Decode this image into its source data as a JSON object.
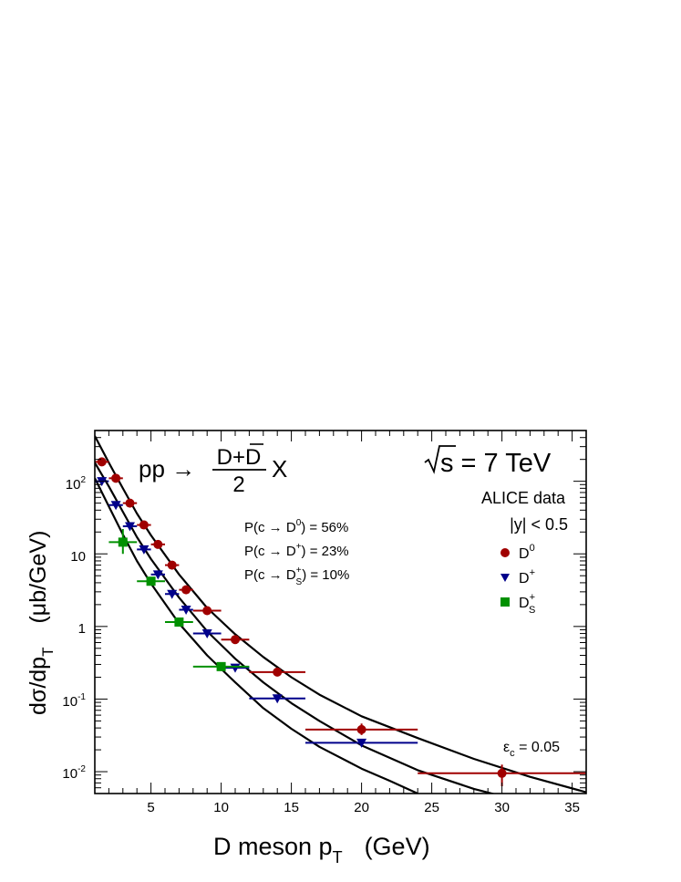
{
  "chart_data": {
    "type": "scatter",
    "y_scale": "log",
    "xlim": [
      1,
      36
    ],
    "ylim": [
      0.005,
      500
    ],
    "grid": false,
    "legend_placement": "top-right",
    "process": {
      "prefix": "pp →",
      "numerator": "D+D",
      "denominator": "2",
      "suffix": "X"
    },
    "energy_label": "s = 7 TeV",
    "legend_header": [
      "ALICE data",
      "|y| < 0.5"
    ],
    "fractions": [
      {
        "text": "P(c → D) = 56%",
        "particle": "D",
        "sup": "0",
        "sub": "",
        "value": "56%"
      },
      {
        "text": "P(c → D) = 23%",
        "particle": "D",
        "sup": "+",
        "sub": "",
        "value": "23%"
      },
      {
        "text": "P(c → D) = 10%",
        "particle": "D",
        "sup": "+",
        "sub": "S",
        "value": "10%"
      }
    ],
    "epsilon_label": {
      "base": "ε",
      "sub": "c",
      "rest": " = 0.05"
    },
    "xlabel": {
      "main": "D meson  p",
      "sub": "T",
      "unit": "(GeV)"
    },
    "ylabel": {
      "main": "dσ/dp",
      "sub": "T",
      "unit": "(μb/GeV)"
    },
    "x_ticks": [
      "5",
      "10",
      "15",
      "20",
      "25",
      "30",
      "35"
    ],
    "y_ticks": [
      {
        "base": "10",
        "exp": "-2"
      },
      {
        "base": "10",
        "exp": "-1"
      },
      {
        "base": "1",
        "exp": ""
      },
      {
        "base": "10",
        "exp": ""
      },
      {
        "base": "10",
        "exp": "2"
      }
    ],
    "series": [
      {
        "name": "D",
        "sup": "0",
        "sub": "",
        "marker": "circle",
        "color": "#a00000",
        "points": [
          {
            "x": 1.5,
            "y": 185,
            "xlo": 1,
            "xhi": 2
          },
          {
            "x": 2.5,
            "y": 110,
            "xlo": 2,
            "xhi": 3
          },
          {
            "x": 3.5,
            "y": 50,
            "xlo": 3,
            "xhi": 4
          },
          {
            "x": 4.5,
            "y": 25,
            "xlo": 4,
            "xhi": 5
          },
          {
            "x": 5.5,
            "y": 13.5,
            "xlo": 5,
            "xhi": 6
          },
          {
            "x": 6.5,
            "y": 7,
            "xlo": 6,
            "xhi": 7
          },
          {
            "x": 7.5,
            "y": 3.2,
            "xlo": 7,
            "xhi": 8
          },
          {
            "x": 9,
            "y": 1.65,
            "xlo": 8,
            "xhi": 10
          },
          {
            "x": 11,
            "y": 0.66,
            "xlo": 10,
            "xhi": 12
          },
          {
            "x": 14,
            "y": 0.235,
            "xlo": 12,
            "xhi": 16
          },
          {
            "x": 20,
            "y": 0.038,
            "xlo": 16,
            "xhi": 24,
            "ylo": 0.032,
            "yhi": 0.046
          },
          {
            "x": 30,
            "y": 0.0095,
            "xlo": 24,
            "xhi": 36,
            "ylo": 0.0063,
            "yhi": 0.0125
          }
        ]
      },
      {
        "name": "D",
        "sup": "+",
        "sub": "",
        "marker": "triangle-down",
        "color": "#00008b",
        "points": [
          {
            "x": 1.5,
            "y": 100,
            "xlo": 1,
            "xhi": 2
          },
          {
            "x": 2.5,
            "y": 47,
            "xlo": 2,
            "xhi": 3
          },
          {
            "x": 3.5,
            "y": 24,
            "xlo": 3,
            "xhi": 4
          },
          {
            "x": 4.5,
            "y": 11.5,
            "xlo": 4,
            "xhi": 5
          },
          {
            "x": 5.5,
            "y": 5.2,
            "xlo": 5,
            "xhi": 6
          },
          {
            "x": 6.5,
            "y": 2.8,
            "xlo": 6,
            "xhi": 7
          },
          {
            "x": 7.5,
            "y": 1.7,
            "xlo": 7,
            "xhi": 8
          },
          {
            "x": 9,
            "y": 0.8,
            "xlo": 8,
            "xhi": 10
          },
          {
            "x": 11,
            "y": 0.27,
            "xlo": 10,
            "xhi": 12
          },
          {
            "x": 14,
            "y": 0.102,
            "xlo": 12,
            "xhi": 16
          },
          {
            "x": 20,
            "y": 0.025,
            "xlo": 16,
            "xhi": 24
          }
        ]
      },
      {
        "name": "D",
        "sup": "+",
        "sub": "S",
        "marker": "square",
        "color": "#009000",
        "points": [
          {
            "x": 3,
            "y": 14.5,
            "xlo": 2,
            "xhi": 4,
            "ylo": 10,
            "yhi": 22
          },
          {
            "x": 5,
            "y": 4.2,
            "xlo": 4,
            "xhi": 6
          },
          {
            "x": 7,
            "y": 1.15,
            "xlo": 6,
            "xhi": 8
          },
          {
            "x": 10,
            "y": 0.28,
            "xlo": 8,
            "xhi": 12
          }
        ]
      }
    ],
    "curves": [
      {
        "name": "",
        "points": [
          [
            1,
            420
          ],
          [
            2,
            180
          ],
          [
            3,
            80
          ],
          [
            4,
            36
          ],
          [
            5,
            18
          ],
          [
            7,
            5.2
          ],
          [
            9,
            1.8
          ],
          [
            11,
            0.78
          ],
          [
            13,
            0.38
          ],
          [
            15,
            0.2
          ],
          [
            17,
            0.115
          ],
          [
            20,
            0.058
          ],
          [
            24,
            0.029
          ],
          [
            28,
            0.015
          ],
          [
            32,
            0.0085
          ],
          [
            36,
            0.0052
          ]
        ]
      },
      {
        "name": "",
        "points": [
          [
            1,
            180
          ],
          [
            2,
            85
          ],
          [
            3,
            38
          ],
          [
            4,
            17
          ],
          [
            5,
            8.5
          ],
          [
            7,
            2.5
          ],
          [
            9,
            0.86
          ],
          [
            11,
            0.36
          ],
          [
            13,
            0.17
          ],
          [
            15,
            0.088
          ],
          [
            17,
            0.05
          ],
          [
            20,
            0.023
          ],
          [
            24,
            0.0105
          ],
          [
            28,
            0.0058
          ],
          [
            30,
            0.0046
          ]
        ]
      },
      {
        "name": "",
        "points": [
          [
            1,
            110
          ],
          [
            2,
            45
          ],
          [
            3,
            18.5
          ],
          [
            4,
            8
          ],
          [
            5,
            3.9
          ],
          [
            7,
            1.1
          ],
          [
            9,
            0.4
          ],
          [
            11,
            0.17
          ],
          [
            13,
            0.075
          ],
          [
            15,
            0.039
          ],
          [
            17,
            0.022
          ],
          [
            20,
            0.011
          ],
          [
            22,
            0.0075
          ],
          [
            24,
            0.005
          ]
        ]
      }
    ]
  }
}
